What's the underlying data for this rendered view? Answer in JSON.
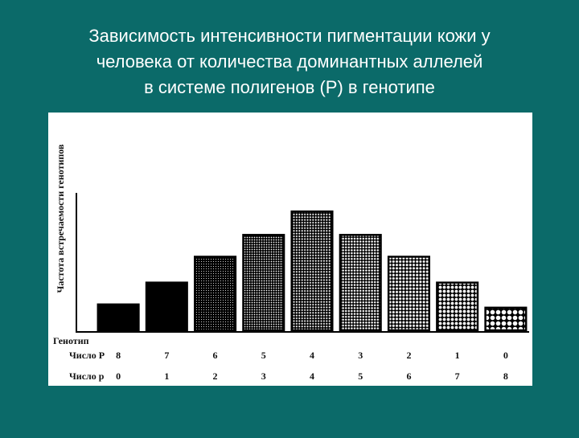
{
  "slide_title": [
    "Зависимость интенсивности пигментации кожи у",
    "человека от количества доминантных аллелей",
    "в системе полигенов (Р) в генотипе"
  ],
  "chart_data": {
    "type": "bar",
    "y_label": "Частота встречаемости генотипов",
    "genotype_label": "Генотип",
    "row_labels": [
      "Число P",
      "Число р"
    ],
    "categories": [
      "8",
      "7",
      "6",
      "5",
      "4",
      "3",
      "2",
      "1",
      "0"
    ],
    "categories_p": [
      "0",
      "1",
      "2",
      "3",
      "4",
      "5",
      "6",
      "7",
      "8"
    ],
    "values": [
      32,
      59,
      91,
      118,
      147,
      118,
      91,
      59,
      28
    ],
    "ylim": [
      0,
      170
    ],
    "color": "#000000"
  }
}
